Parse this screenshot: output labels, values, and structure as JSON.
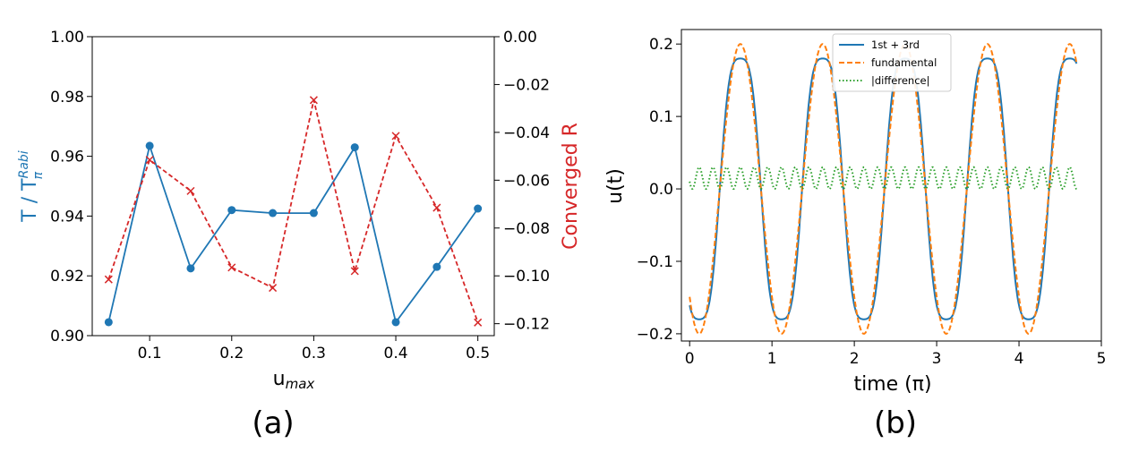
{
  "colors": {
    "blue": "#1f77b4",
    "red": "#d62728",
    "orange": "#ff7f0e",
    "green": "#2ca02c"
  },
  "captions": {
    "a": "(a)",
    "b": "(b)"
  },
  "chart_data": [
    {
      "type": "line",
      "panel": "a",
      "xlabel_main": "u",
      "xlabel_sub": "max",
      "ylabel_left_main": "T / T",
      "ylabel_left_sup": "Rabi",
      "ylabel_left_sub": "π",
      "ylabel_right": "Converged R",
      "xlim": [
        0.03,
        0.52
      ],
      "ylim_left": [
        0.9,
        1.0
      ],
      "ylim_right": [
        -0.125,
        0.0
      ],
      "xticks": [
        "0.1",
        "0.2",
        "0.3",
        "0.4",
        "0.5"
      ],
      "xtick_values": [
        0.1,
        0.2,
        0.3,
        0.4,
        0.5
      ],
      "yticks_left": [
        "0.90",
        "0.92",
        "0.94",
        "0.96",
        "0.98",
        "1.00"
      ],
      "ytick_left_values": [
        0.9,
        0.92,
        0.94,
        0.96,
        0.98,
        1.0
      ],
      "yticks_right": [
        "−0.12",
        "−0.10",
        "−0.08",
        "−0.06",
        "−0.04",
        "−0.02",
        "0.00"
      ],
      "ytick_right_values": [
        -0.12,
        -0.1,
        -0.08,
        -0.06,
        -0.04,
        -0.02,
        0.0
      ],
      "x": [
        0.05,
        0.1,
        0.15,
        0.2,
        0.25,
        0.3,
        0.35,
        0.4,
        0.45,
        0.5
      ],
      "series": [
        {
          "axis": "left",
          "color": "#1f77b4",
          "style": "solid",
          "marker": "circle",
          "values": [
            0.9045,
            0.9635,
            0.9225,
            0.942,
            0.941,
            0.941,
            0.963,
            0.9045,
            0.923,
            0.9425
          ]
        },
        {
          "axis": "right",
          "color": "#d62728",
          "style": "dashed",
          "marker": "x",
          "values": [
            -0.1015,
            -0.0515,
            -0.0645,
            -0.0965,
            -0.105,
            -0.0265,
            -0.098,
            -0.0415,
            -0.0715,
            -0.1195
          ]
        }
      ]
    },
    {
      "type": "line",
      "panel": "b",
      "xlabel": "time (π)",
      "ylabel": "u(t)",
      "xlim": [
        -0.1,
        5.0
      ],
      "ylim": [
        -0.21,
        0.22
      ],
      "xticks": [
        "0",
        "1",
        "2",
        "3",
        "4",
        "5"
      ],
      "xtick_values": [
        0,
        1,
        2,
        3,
        4,
        5
      ],
      "yticks": [
        "−0.2",
        "−0.1",
        "0.0",
        "0.1",
        "0.2"
      ],
      "ytick_values": [
        -0.2,
        -0.1,
        0.0,
        0.1,
        0.2
      ],
      "legend_position": "top-center",
      "x_range": [
        0,
        4.7
      ],
      "series": [
        {
          "name": "1st + 3rd",
          "color": "#1f77b4",
          "style": "solid"
        },
        {
          "name": "fundamental",
          "color": "#ff7f0e",
          "style": "dashed"
        },
        {
          "name": "|difference|",
          "color": "#2ca02c",
          "style": "dotted"
        }
      ]
    }
  ]
}
